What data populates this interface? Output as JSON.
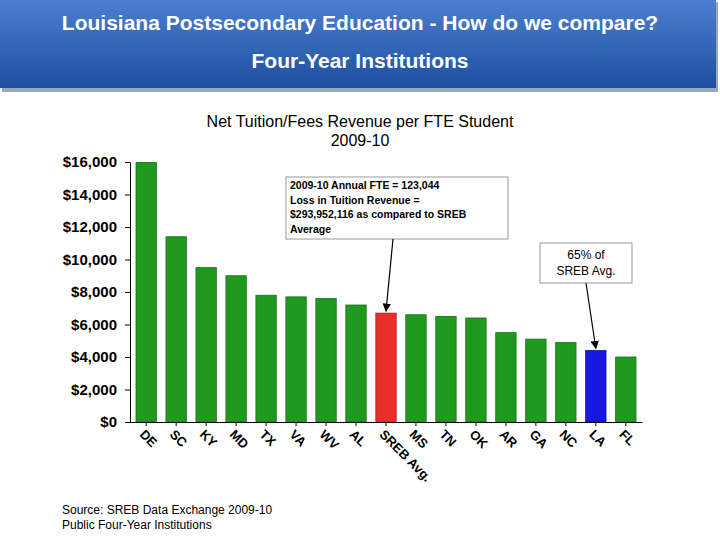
{
  "header": {
    "lines": [
      "Louisiana Postsecondary Education  - How do we compare?",
      "Four-Year Institutions"
    ]
  },
  "source": [
    "Source: SREB Data Exchange 2009-10",
    "Public Four-Year Institutions"
  ],
  "chart_data": {
    "type": "bar",
    "title": "Net Tuition/Fees Revenue per FTE Student",
    "subtitle": "2009-10",
    "categories": [
      "DE",
      "SC",
      "KY",
      "MD",
      "TX",
      "VA",
      "WV",
      "AL",
      "SREB Avg.",
      "MS",
      "TN",
      "OK",
      "AR",
      "GA",
      "NC",
      "LA",
      "FL"
    ],
    "values": [
      16000,
      11400,
      9500,
      9000,
      7800,
      7700,
      7600,
      7200,
      6700,
      6600,
      6500,
      6400,
      5500,
      5100,
      4900,
      4400,
      4000
    ],
    "colors": [
      "#1f9a1f",
      "#1f9a1f",
      "#1f9a1f",
      "#1f9a1f",
      "#1f9a1f",
      "#1f9a1f",
      "#1f9a1f",
      "#1f9a1f",
      "#e8302a",
      "#1f9a1f",
      "#1f9a1f",
      "#1f9a1f",
      "#1f9a1f",
      "#1f9a1f",
      "#1f9a1f",
      "#1818e0",
      "#1f9a1f"
    ],
    "ylim": [
      0,
      16000
    ],
    "yticks": [
      {
        "value": 0,
        "label": "$0"
      },
      {
        "value": 2000,
        "label": "$2,000"
      },
      {
        "value": 4000,
        "label": "$4,000"
      },
      {
        "value": 6000,
        "label": "$6,000"
      },
      {
        "value": 8000,
        "label": "$8,000"
      },
      {
        "value": 10000,
        "label": "$10,000"
      },
      {
        "value": 12000,
        "label": "$12,000"
      },
      {
        "value": 14000,
        "label": "$14,000"
      },
      {
        "value": 16000,
        "label": "$16,000"
      }
    ],
    "grid": false,
    "annotations": [
      {
        "lines": [
          "2009-10 Annual FTE = 123,044",
          "Loss in Tuition Revenue =",
          "$293,952,116   as compared to SREB",
          "Average"
        ],
        "target": "SREB Avg."
      },
      {
        "lines": [
          "65% of",
          "SREB Avg."
        ],
        "target": "LA"
      }
    ]
  }
}
